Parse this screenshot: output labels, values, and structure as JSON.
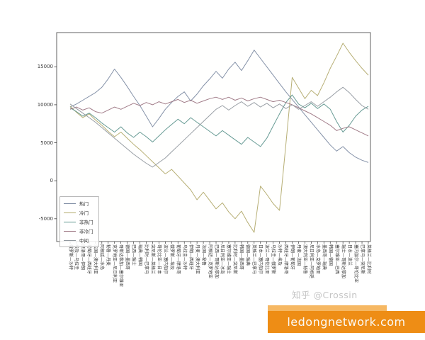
{
  "watermark": {
    "text": "知乎 @Crossin"
  },
  "banner": {
    "text": "ledongnetwork.com",
    "color_main": "#ee8d15",
    "color_light": "#f6b863",
    "text_color": "#fbfaf6"
  },
  "chart_data": {
    "type": "line",
    "title": "",
    "xlabel": "",
    "ylabel": "",
    "grid": false,
    "legend_position": "lower-left",
    "ylim": [
      -8000,
      19500
    ],
    "yticks": [
      15000,
      10000,
      5000,
      0,
      -5000
    ],
    "x_categories": [
      "俄罗斯—沙特",
      "埃及—乌拉圭",
      "摩洛哥—伊朗",
      "葡萄牙—西班牙",
      "法国—澳大利亚",
      "阿根廷—冰岛",
      "秘鲁—丹麦",
      "克罗地亚—尼日利亚",
      "哥斯达黎加—塞尔维亚",
      "德国—墨西哥",
      "巴西—瑞士",
      "瑞典—韩国",
      "比利时—巴拿马",
      "突尼斯—英格兰",
      "哥伦比亚—日本",
      "波兰—塞内加尔",
      "俄罗斯—埃及",
      "葡萄牙—摩洛哥",
      "乌拉圭—沙特",
      "伊朗—西班牙",
      "丹麦—澳大利亚",
      "法国—秘鲁",
      "阿根廷—克罗地亚",
      "巴西—哥斯达黎加",
      "尼日利亚—冰岛",
      "塞尔维亚—瑞士",
      "比利时—突尼斯",
      "韩国—墨西哥",
      "德国—瑞典",
      "英格兰—巴拿马",
      "日本—塞内加尔",
      "波兰—哥伦比亚",
      "乌拉圭—俄罗斯",
      "沙特—埃及",
      "西班牙—摩洛哥",
      "伊朗—葡萄牙",
      "丹麦—法国",
      "澳大利亚—秘鲁",
      "尼日利亚—阿根廷",
      "冰岛—克罗地亚",
      "墨西哥—瑞典",
      "韩国—德国",
      "塞尔维亚—巴西",
      "瑞士—哥斯达黎加",
      "日本—波兰",
      "塞内加尔—哥伦比亚",
      "巴拿马—突尼斯",
      "英格兰—比利时"
    ],
    "series": [
      {
        "name": "热门",
        "color": "#7e8ca3",
        "values": [
          9700,
          10100,
          10600,
          11100,
          11600,
          12300,
          13400,
          14700,
          13600,
          12400,
          11100,
          9900,
          8500,
          7100,
          8200,
          9400,
          10300,
          11100,
          11700,
          10500,
          11400,
          12500,
          13400,
          14400,
          13500,
          14700,
          15600,
          14500,
          15800,
          17200,
          16100,
          15000,
          13900,
          12800,
          11700,
          10700,
          9700,
          8700,
          7700,
          6700,
          5700,
          4700,
          3900,
          4500,
          3700,
          3100,
          2700,
          2400
        ]
      },
      {
        "name": "冷门",
        "color": "#b3ab6e",
        "values": [
          9800,
          9000,
          8300,
          8800,
          8000,
          7300,
          6500,
          5800,
          6400,
          5600,
          4800,
          4100,
          3300,
          2500,
          1700,
          900,
          1500,
          600,
          -300,
          -1200,
          -2500,
          -1500,
          -2600,
          -3700,
          -2900,
          -4100,
          -5000,
          -4000,
          -5500,
          -6800,
          -700,
          -1800,
          -3000,
          -3900,
          4800,
          13600,
          12200,
          10800,
          11900,
          11200,
          12900,
          14800,
          16400,
          18100,
          16900,
          15800,
          14800,
          13900
        ]
      },
      {
        "name": "非热门",
        "color": "#5f968e",
        "values": [
          9600,
          9100,
          8500,
          8900,
          8300,
          7600,
          7000,
          6400,
          7100,
          6300,
          5700,
          6400,
          5800,
          5100,
          5900,
          6700,
          7400,
          8100,
          7500,
          8300,
          7700,
          7100,
          6500,
          5900,
          6600,
          6000,
          5400,
          4800,
          5700,
          5100,
          4500,
          5600,
          7200,
          8800,
          10300,
          11300,
          10100,
          9600,
          10200,
          9500,
          10100,
          9400,
          7800,
          6400,
          7300,
          8500,
          9300,
          9800
        ]
      },
      {
        "name": "非冷门",
        "color": "#9c7582",
        "values": [
          9400,
          9700,
          9300,
          9600,
          9100,
          8900,
          9300,
          9700,
          9400,
          9800,
          10200,
          9900,
          10300,
          10000,
          10400,
          10100,
          10400,
          10700,
          10300,
          10600,
          10200,
          10500,
          10800,
          11000,
          10700,
          11000,
          10600,
          10900,
          10500,
          10800,
          11000,
          10700,
          10400,
          10600,
          10300,
          10000,
          9600,
          9200,
          8800,
          8300,
          7800,
          7300,
          6600,
          6900,
          7100,
          6700,
          6300,
          5900
        ]
      },
      {
        "name": "中间",
        "color": "#92999f",
        "values": [
          10100,
          9500,
          8900,
          8300,
          7700,
          7000,
          6300,
          5600,
          4900,
          4200,
          3500,
          2900,
          2300,
          1800,
          2400,
          3000,
          3800,
          4600,
          5400,
          6200,
          7000,
          7800,
          8600,
          9400,
          9900,
          9300,
          9900,
          10400,
          9800,
          10300,
          9700,
          10200,
          9600,
          10100,
          9500,
          10000,
          9400,
          9900,
          10400,
          9800,
          10400,
          11000,
          11700,
          12300,
          11600,
          10700,
          9900,
          9400
        ]
      }
    ]
  }
}
